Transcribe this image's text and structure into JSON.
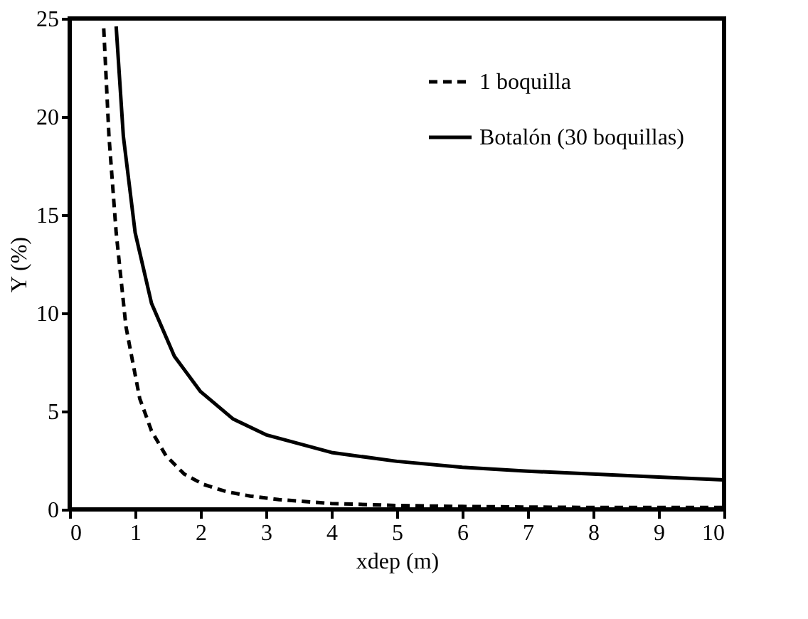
{
  "chart_data": {
    "type": "line",
    "xlabel": "xdep (m)",
    "ylabel": "Y (%)",
    "xlim": [
      0,
      10
    ],
    "xticks": [
      0,
      1,
      2,
      3,
      4,
      5,
      6,
      7,
      8,
      9,
      10
    ],
    "ylim": [
      0,
      25
    ],
    "yticks": [
      0,
      5,
      10,
      15,
      20,
      25
    ],
    "grid": false,
    "legend": "top right",
    "marker": "none",
    "series": [
      {
        "name": "1 boquilla",
        "color": "#000000",
        "line_style": "dashed",
        "x": [
          0.52,
          0.6,
          0.71,
          0.86,
          1.07,
          1.25,
          1.47,
          1.75,
          2.04,
          2.4,
          2.76,
          3.2,
          4,
          5,
          6,
          7,
          8,
          9,
          10
        ],
        "values": [
          24.5,
          19,
          14.1,
          9.3,
          5.65,
          4,
          2.74,
          1.8,
          1.28,
          0.9,
          0.68,
          0.5,
          0.3,
          0.2,
          0.15,
          0.12,
          0.1,
          0.1,
          0.1
        ]
      },
      {
        "name": "Botalón (30 boquillas)",
        "color": "#000000",
        "line_style": "solid",
        "x": [
          0.71,
          0.82,
          1,
          1.25,
          1.6,
          2,
          2.5,
          3,
          4,
          5,
          6,
          7,
          8,
          9,
          10
        ],
        "values": [
          24.6,
          19,
          14.1,
          10.5,
          7.8,
          6,
          4.6,
          3.8,
          2.9,
          2.45,
          2.15,
          1.95,
          1.8,
          1.65,
          1.5
        ]
      }
    ]
  }
}
